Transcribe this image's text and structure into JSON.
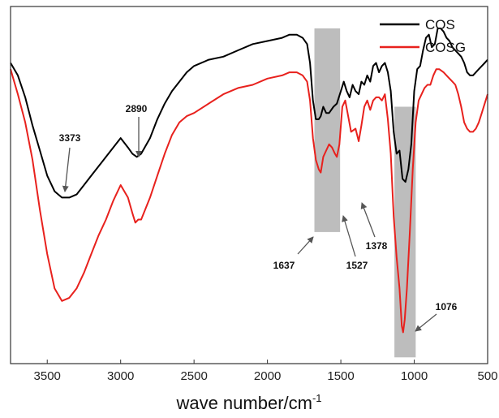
{
  "chart_data": {
    "type": "line",
    "title": "",
    "xlabel": "wave number/cm",
    "xlabel_superscript": "-1",
    "ylabel": "",
    "xlim": [
      3750,
      500
    ],
    "x_reversed": true,
    "y_axis_labels_shown": false,
    "grid": false,
    "legend_position": "top-right",
    "x_ticks": [
      3500,
      3000,
      2500,
      2000,
      1500,
      1000,
      500
    ],
    "series": [
      {
        "name": "COS",
        "color": "#000000",
        "points": [
          [
            3750,
            0.64
          ],
          [
            3700,
            0.6
          ],
          [
            3650,
            0.53
          ],
          [
            3600,
            0.44
          ],
          [
            3550,
            0.36
          ],
          [
            3500,
            0.28
          ],
          [
            3450,
            0.23
          ],
          [
            3400,
            0.21
          ],
          [
            3350,
            0.21
          ],
          [
            3300,
            0.22
          ],
          [
            3250,
            0.25
          ],
          [
            3200,
            0.28
          ],
          [
            3150,
            0.31
          ],
          [
            3100,
            0.34
          ],
          [
            3050,
            0.37
          ],
          [
            3000,
            0.4
          ],
          [
            2950,
            0.37
          ],
          [
            2920,
            0.35
          ],
          [
            2890,
            0.34
          ],
          [
            2860,
            0.35
          ],
          [
            2800,
            0.4
          ],
          [
            2750,
            0.46
          ],
          [
            2700,
            0.51
          ],
          [
            2650,
            0.55
          ],
          [
            2600,
            0.58
          ],
          [
            2550,
            0.61
          ],
          [
            2500,
            0.63
          ],
          [
            2400,
            0.65
          ],
          [
            2300,
            0.66
          ],
          [
            2200,
            0.68
          ],
          [
            2100,
            0.7
          ],
          [
            2000,
            0.71
          ],
          [
            1900,
            0.72
          ],
          [
            1850,
            0.73
          ],
          [
            1800,
            0.73
          ],
          [
            1760,
            0.72
          ],
          [
            1730,
            0.7
          ],
          [
            1710,
            0.64
          ],
          [
            1690,
            0.52
          ],
          [
            1670,
            0.46
          ],
          [
            1650,
            0.46
          ],
          [
            1637,
            0.47
          ],
          [
            1620,
            0.5
          ],
          [
            1600,
            0.48
          ],
          [
            1580,
            0.48
          ],
          [
            1550,
            0.5
          ],
          [
            1527,
            0.51
          ],
          [
            1500,
            0.55
          ],
          [
            1480,
            0.58
          ],
          [
            1460,
            0.55
          ],
          [
            1440,
            0.53
          ],
          [
            1420,
            0.57
          ],
          [
            1400,
            0.55
          ],
          [
            1378,
            0.54
          ],
          [
            1360,
            0.58
          ],
          [
            1340,
            0.57
          ],
          [
            1320,
            0.6
          ],
          [
            1300,
            0.58
          ],
          [
            1280,
            0.63
          ],
          [
            1260,
            0.64
          ],
          [
            1240,
            0.61
          ],
          [
            1220,
            0.63
          ],
          [
            1200,
            0.64
          ],
          [
            1180,
            0.61
          ],
          [
            1160,
            0.55
          ],
          [
            1140,
            0.42
          ],
          [
            1120,
            0.35
          ],
          [
            1100,
            0.36
          ],
          [
            1080,
            0.27
          ],
          [
            1060,
            0.26
          ],
          [
            1040,
            0.3
          ],
          [
            1020,
            0.38
          ],
          [
            1000,
            0.55
          ],
          [
            980,
            0.62
          ],
          [
            960,
            0.63
          ],
          [
            940,
            0.68
          ],
          [
            920,
            0.72
          ],
          [
            900,
            0.73
          ],
          [
            880,
            0.69
          ],
          [
            860,
            0.7
          ],
          [
            840,
            0.75
          ],
          [
            820,
            0.75
          ],
          [
            800,
            0.74
          ],
          [
            780,
            0.72
          ],
          [
            760,
            0.71
          ],
          [
            740,
            0.69
          ],
          [
            700,
            0.67
          ],
          [
            680,
            0.66
          ],
          [
            660,
            0.64
          ],
          [
            640,
            0.61
          ],
          [
            620,
            0.6
          ],
          [
            600,
            0.6
          ],
          [
            580,
            0.61
          ],
          [
            560,
            0.62
          ],
          [
            540,
            0.63
          ],
          [
            520,
            0.64
          ],
          [
            500,
            0.65
          ]
        ]
      },
      {
        "name": "COSG",
        "color": "#e8211d",
        "points": [
          [
            3750,
            0.62
          ],
          [
            3700,
            0.54
          ],
          [
            3650,
            0.45
          ],
          [
            3600,
            0.33
          ],
          [
            3550,
            0.17
          ],
          [
            3500,
            0.03
          ],
          [
            3450,
            -0.08
          ],
          [
            3400,
            -0.12
          ],
          [
            3350,
            -0.11
          ],
          [
            3300,
            -0.08
          ],
          [
            3250,
            -0.03
          ],
          [
            3200,
            0.03
          ],
          [
            3150,
            0.09
          ],
          [
            3100,
            0.14
          ],
          [
            3050,
            0.2
          ],
          [
            3000,
            0.25
          ],
          [
            2950,
            0.21
          ],
          [
            2920,
            0.16
          ],
          [
            2900,
            0.13
          ],
          [
            2880,
            0.14
          ],
          [
            2860,
            0.14
          ],
          [
            2800,
            0.21
          ],
          [
            2750,
            0.28
          ],
          [
            2700,
            0.35
          ],
          [
            2650,
            0.41
          ],
          [
            2600,
            0.45
          ],
          [
            2550,
            0.47
          ],
          [
            2500,
            0.48
          ],
          [
            2400,
            0.51
          ],
          [
            2300,
            0.54
          ],
          [
            2200,
            0.56
          ],
          [
            2100,
            0.57
          ],
          [
            2000,
            0.59
          ],
          [
            1900,
            0.6
          ],
          [
            1850,
            0.61
          ],
          [
            1800,
            0.61
          ],
          [
            1760,
            0.6
          ],
          [
            1730,
            0.58
          ],
          [
            1710,
            0.52
          ],
          [
            1690,
            0.4
          ],
          [
            1670,
            0.33
          ],
          [
            1650,
            0.3
          ],
          [
            1637,
            0.29
          ],
          [
            1620,
            0.34
          ],
          [
            1600,
            0.36
          ],
          [
            1580,
            0.38
          ],
          [
            1560,
            0.37
          ],
          [
            1540,
            0.35
          ],
          [
            1527,
            0.34
          ],
          [
            1510,
            0.38
          ],
          [
            1490,
            0.5
          ],
          [
            1470,
            0.52
          ],
          [
            1450,
            0.47
          ],
          [
            1430,
            0.42
          ],
          [
            1400,
            0.43
          ],
          [
            1378,
            0.39
          ],
          [
            1360,
            0.44
          ],
          [
            1340,
            0.5
          ],
          [
            1320,
            0.52
          ],
          [
            1300,
            0.49
          ],
          [
            1280,
            0.52
          ],
          [
            1260,
            0.53
          ],
          [
            1240,
            0.53
          ],
          [
            1220,
            0.52
          ],
          [
            1200,
            0.54
          ],
          [
            1180,
            0.46
          ],
          [
            1160,
            0.35
          ],
          [
            1140,
            0.15
          ],
          [
            1120,
            0.02
          ],
          [
            1100,
            -0.08
          ],
          [
            1085,
            -0.2
          ],
          [
            1076,
            -0.22
          ],
          [
            1065,
            -0.18
          ],
          [
            1050,
            -0.08
          ],
          [
            1030,
            0.1
          ],
          [
            1010,
            0.3
          ],
          [
            990,
            0.45
          ],
          [
            970,
            0.52
          ],
          [
            950,
            0.54
          ],
          [
            930,
            0.56
          ],
          [
            910,
            0.57
          ],
          [
            890,
            0.57
          ],
          [
            870,
            0.6
          ],
          [
            850,
            0.62
          ],
          [
            830,
            0.62
          ],
          [
            800,
            0.61
          ],
          [
            780,
            0.6
          ],
          [
            760,
            0.59
          ],
          [
            740,
            0.58
          ],
          [
            720,
            0.57
          ],
          [
            700,
            0.54
          ],
          [
            680,
            0.5
          ],
          [
            660,
            0.45
          ],
          [
            640,
            0.43
          ],
          [
            620,
            0.42
          ],
          [
            600,
            0.42
          ],
          [
            580,
            0.43
          ],
          [
            560,
            0.45
          ],
          [
            540,
            0.48
          ],
          [
            520,
            0.51
          ],
          [
            500,
            0.54
          ]
        ]
      }
    ],
    "shaded_regions": [
      {
        "x_start": 1680,
        "x_end": 1505,
        "y_start": 0.1,
        "y_end": 0.75
      },
      {
        "x_start": 1135,
        "x_end": 990,
        "y_start": -0.3,
        "y_end": 0.5
      }
    ],
    "annotations": [
      {
        "label": "3373",
        "x": 3373
      },
      {
        "label": "2890",
        "x": 2890
      },
      {
        "label": "1637",
        "x": 1637
      },
      {
        "label": "1527",
        "x": 1527
      },
      {
        "label": "1378",
        "x": 1378
      },
      {
        "label": "1076",
        "x": 1076
      }
    ]
  }
}
